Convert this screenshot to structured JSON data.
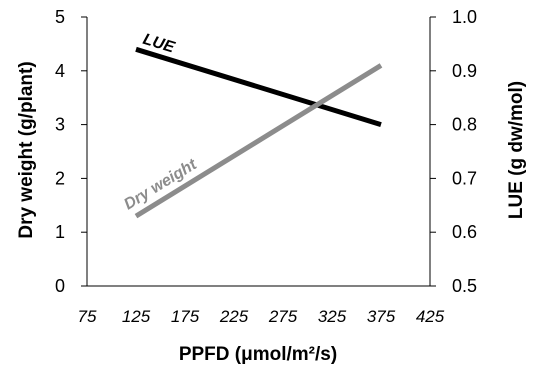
{
  "chart_data": {
    "type": "line",
    "x_unit_label": "PPFD (μmol/m²/s)",
    "y_left_label": "Dry weight (g/plant)",
    "y_right_label": "LUE (g dw/mol)",
    "x_range": [
      75,
      425
    ],
    "x_ticks": [
      "75",
      "125",
      "175",
      "225",
      "275",
      "325",
      "375",
      "425"
    ],
    "x_tick_values": [
      75,
      125,
      175,
      225,
      275,
      325,
      375,
      425
    ],
    "y_left_range": [
      0,
      5
    ],
    "y_left_ticks": [
      "0",
      "1",
      "2",
      "3",
      "4",
      "5"
    ],
    "y_left_tick_values": [
      0,
      1,
      2,
      3,
      4,
      5
    ],
    "y_right_range": [
      0.5,
      1.0
    ],
    "y_right_ticks": [
      "0.5",
      "0.6",
      "0.7",
      "0.8",
      "0.9",
      "1.0"
    ],
    "y_right_tick_values": [
      0.5,
      0.6,
      0.7,
      0.8,
      0.9,
      1.0
    ],
    "grid": false,
    "series": [
      {
        "name": "LUE",
        "axis": "right",
        "color": "#000000",
        "x": [
          125,
          375
        ],
        "y": [
          0.94,
          0.8
        ]
      },
      {
        "name": "Dry weight",
        "axis": "left",
        "color": "#8c8c8c",
        "x": [
          125,
          375
        ],
        "y": [
          1.3,
          4.1
        ]
      }
    ]
  }
}
